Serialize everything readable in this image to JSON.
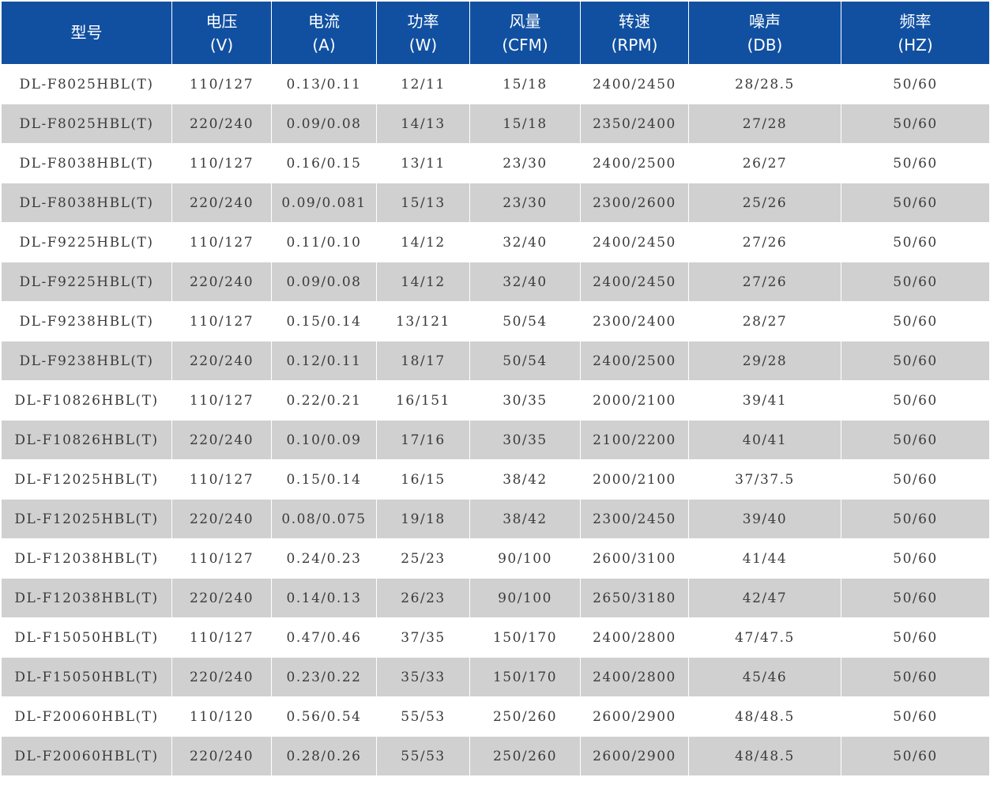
{
  "colors": {
    "header_bg": "#1150a1",
    "header_text": "#ffffff",
    "stripe_bg": "#d0d0d0",
    "row_bg": "#ffffff",
    "cell_text": "#3a3a3a"
  },
  "table": {
    "headers": [
      {
        "name": "型号",
        "unit": ""
      },
      {
        "name": "电压",
        "unit": "(V)"
      },
      {
        "name": "电流",
        "unit": "(A)"
      },
      {
        "name": "功率",
        "unit": "(W)"
      },
      {
        "name": "风量",
        "unit": "(CFM)"
      },
      {
        "name": "转速",
        "unit": "(RPM)"
      },
      {
        "name": "噪声",
        "unit": "(DB)"
      },
      {
        "name": "频率",
        "unit": "(HZ)"
      }
    ],
    "rows": [
      [
        "DL-F8025HBL(T)",
        "110/127",
        "0.13/0.11",
        "12/11",
        "15/18",
        "2400/2450",
        "28/28.5",
        "50/60"
      ],
      [
        "DL-F8025HBL(T)",
        "220/240",
        "0.09/0.08",
        "14/13",
        "15/18",
        "2350/2400",
        "27/28",
        "50/60"
      ],
      [
        "DL-F8038HBL(T)",
        "110/127",
        "0.16/0.15",
        "13/11",
        "23/30",
        "2400/2500",
        "26/27",
        "50/60"
      ],
      [
        "DL-F8038HBL(T)",
        "220/240",
        "0.09/0.081",
        "15/13",
        "23/30",
        "2300/2600",
        "25/26",
        "50/60"
      ],
      [
        "DL-F9225HBL(T)",
        "110/127",
        "0.11/0.10",
        "14/12",
        "32/40",
        "2400/2450",
        "27/26",
        "50/60"
      ],
      [
        "DL-F9225HBL(T)",
        "220/240",
        "0.09/0.08",
        "14/12",
        "32/40",
        "2400/2450",
        "27/26",
        "50/60"
      ],
      [
        "DL-F9238HBL(T)",
        "110/127",
        "0.15/0.14",
        "13/121",
        "50/54",
        "2300/2400",
        "28/27",
        "50/60"
      ],
      [
        "DL-F9238HBL(T)",
        "220/240",
        "0.12/0.11",
        "18/17",
        "50/54",
        "2400/2500",
        "29/28",
        "50/60"
      ],
      [
        "DL-F10826HBL(T)",
        "110/127",
        "0.22/0.21",
        "16/151",
        "30/35",
        "2000/2100",
        "39/41",
        "50/60"
      ],
      [
        "DL-F10826HBL(T)",
        "220/240",
        "0.10/0.09",
        "17/16",
        "30/35",
        "2100/2200",
        "40/41",
        "50/60"
      ],
      [
        "DL-F12025HBL(T)",
        "110/127",
        "0.15/0.14",
        "16/15",
        "38/42",
        "2000/2100",
        "37/37.5",
        "50/60"
      ],
      [
        "DL-F12025HBL(T)",
        "220/240",
        "0.08/0.075",
        "19/18",
        "38/42",
        "2300/2450",
        "39/40",
        "50/60"
      ],
      [
        "DL-F12038HBL(T)",
        "110/127",
        "0.24/0.23",
        "25/23",
        "90/100",
        "2600/3100",
        "41/44",
        "50/60"
      ],
      [
        "DL-F12038HBL(T)",
        "220/240",
        "0.14/0.13",
        "26/23",
        "90/100",
        "2650/3180",
        "42/47",
        "50/60"
      ],
      [
        "DL-F15050HBL(T)",
        "110/127",
        "0.47/0.46",
        "37/35",
        "150/170",
        "2400/2800",
        "47/47.5",
        "50/60"
      ],
      [
        "DL-F15050HBL(T)",
        "220/240",
        "0.23/0.22",
        "35/33",
        "150/170",
        "2400/2800",
        "45/46",
        "50/60"
      ],
      [
        "DL-F20060HBL(T)",
        "110/120",
        "0.56/0.54",
        "55/53",
        "250/260",
        "2600/2900",
        "48/48.5",
        "50/60"
      ],
      [
        "DL-F20060HBL(T)",
        "220/240",
        "0.28/0.26",
        "55/53",
        "250/260",
        "2600/2900",
        "48/48.5",
        "50/60"
      ]
    ]
  }
}
